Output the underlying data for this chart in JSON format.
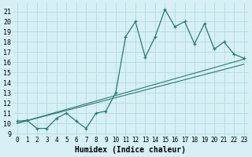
{
  "xlabel": "Humidex (Indice chaleur)",
  "bg_color": "#d6f0f5",
  "grid_color": "#b8dde5",
  "line_color": "#2d7a72",
  "xlim": [
    -0.5,
    23.5
  ],
  "ylim": [
    8.8,
    21.8
  ],
  "yticks": [
    9,
    10,
    11,
    12,
    13,
    14,
    15,
    16,
    17,
    18,
    19,
    20,
    21
  ],
  "ytick_labels": [
    "9",
    "10",
    "11",
    "12",
    "13",
    "14",
    "15",
    "16",
    "17",
    "18",
    "19",
    "20",
    "21"
  ],
  "xticks": [
    0,
    1,
    2,
    3,
    4,
    5,
    6,
    7,
    8,
    9,
    10,
    11,
    12,
    13,
    14,
    15,
    16,
    17,
    18,
    19,
    20,
    21,
    22,
    23
  ],
  "xtick_labels": [
    "0",
    "1",
    "2",
    "3",
    "4",
    "5",
    "6",
    "7",
    "8",
    "9",
    "10",
    "11",
    "12",
    "13",
    "14",
    "15",
    "16",
    "17",
    "18",
    "19",
    "20",
    "21",
    "22",
    "23"
  ],
  "series1_x": [
    0,
    1,
    2,
    3,
    4,
    5,
    6,
    7,
    8,
    9,
    10,
    11,
    12,
    13,
    14,
    15,
    16,
    17,
    18,
    19,
    20,
    21,
    22,
    23
  ],
  "series1_y": [
    10.2,
    10.3,
    9.5,
    9.5,
    10.5,
    11.0,
    10.2,
    9.5,
    11.0,
    11.2,
    13.0,
    18.5,
    20.0,
    16.5,
    18.5,
    21.2,
    19.5,
    20.0,
    17.8,
    19.8,
    17.3,
    18.0,
    16.8,
    16.4
  ],
  "series2_x": [
    0,
    23
  ],
  "series2_y": [
    10.0,
    16.3
  ],
  "series3_x": [
    0,
    23
  ],
  "series3_y": [
    10.0,
    15.8
  ]
}
